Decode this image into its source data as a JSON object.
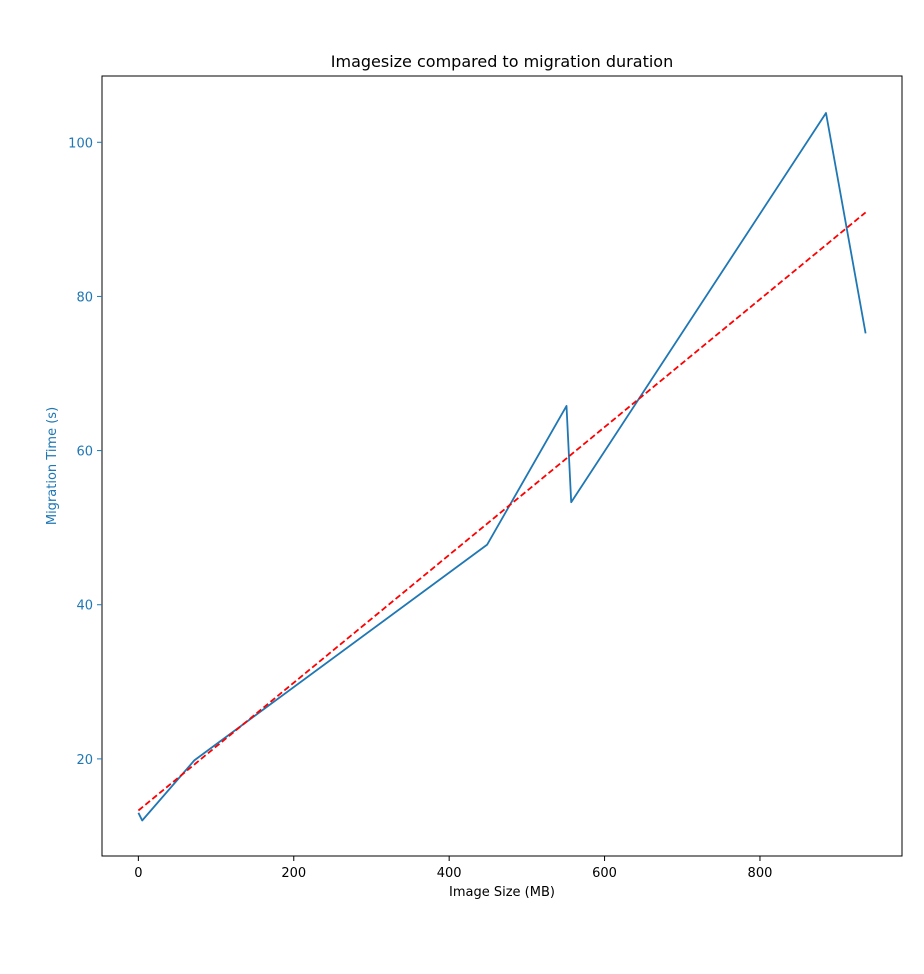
{
  "chart_data": {
    "type": "line",
    "title": "Imagesize compared to migration duration",
    "xlabel": "Image Size (MB)",
    "ylabel": "Migration Time (s)",
    "xlim": [
      -46.8,
      982.8
    ],
    "ylim": [
      7.4,
      108.6
    ],
    "x_ticks": [
      0,
      200,
      400,
      600,
      800
    ],
    "y_ticks": [
      20,
      40,
      60,
      80,
      100
    ],
    "grid": false,
    "colors": {
      "measured": "#1f77b4",
      "trend": "#ff0000",
      "ylabel": "#1f77b4",
      "axes": "#000000"
    },
    "series": [
      {
        "style": "solid",
        "x": [
          0,
          5,
          72,
          449,
          551,
          557,
          885,
          936
        ],
        "y": [
          13,
          12,
          19.8,
          47.8,
          65.8,
          53.3,
          103.8,
          75.2
        ]
      },
      {
        "style": "dashed",
        "x": [
          0,
          936
        ],
        "y": [
          13.3,
          90.9
        ]
      }
    ]
  }
}
